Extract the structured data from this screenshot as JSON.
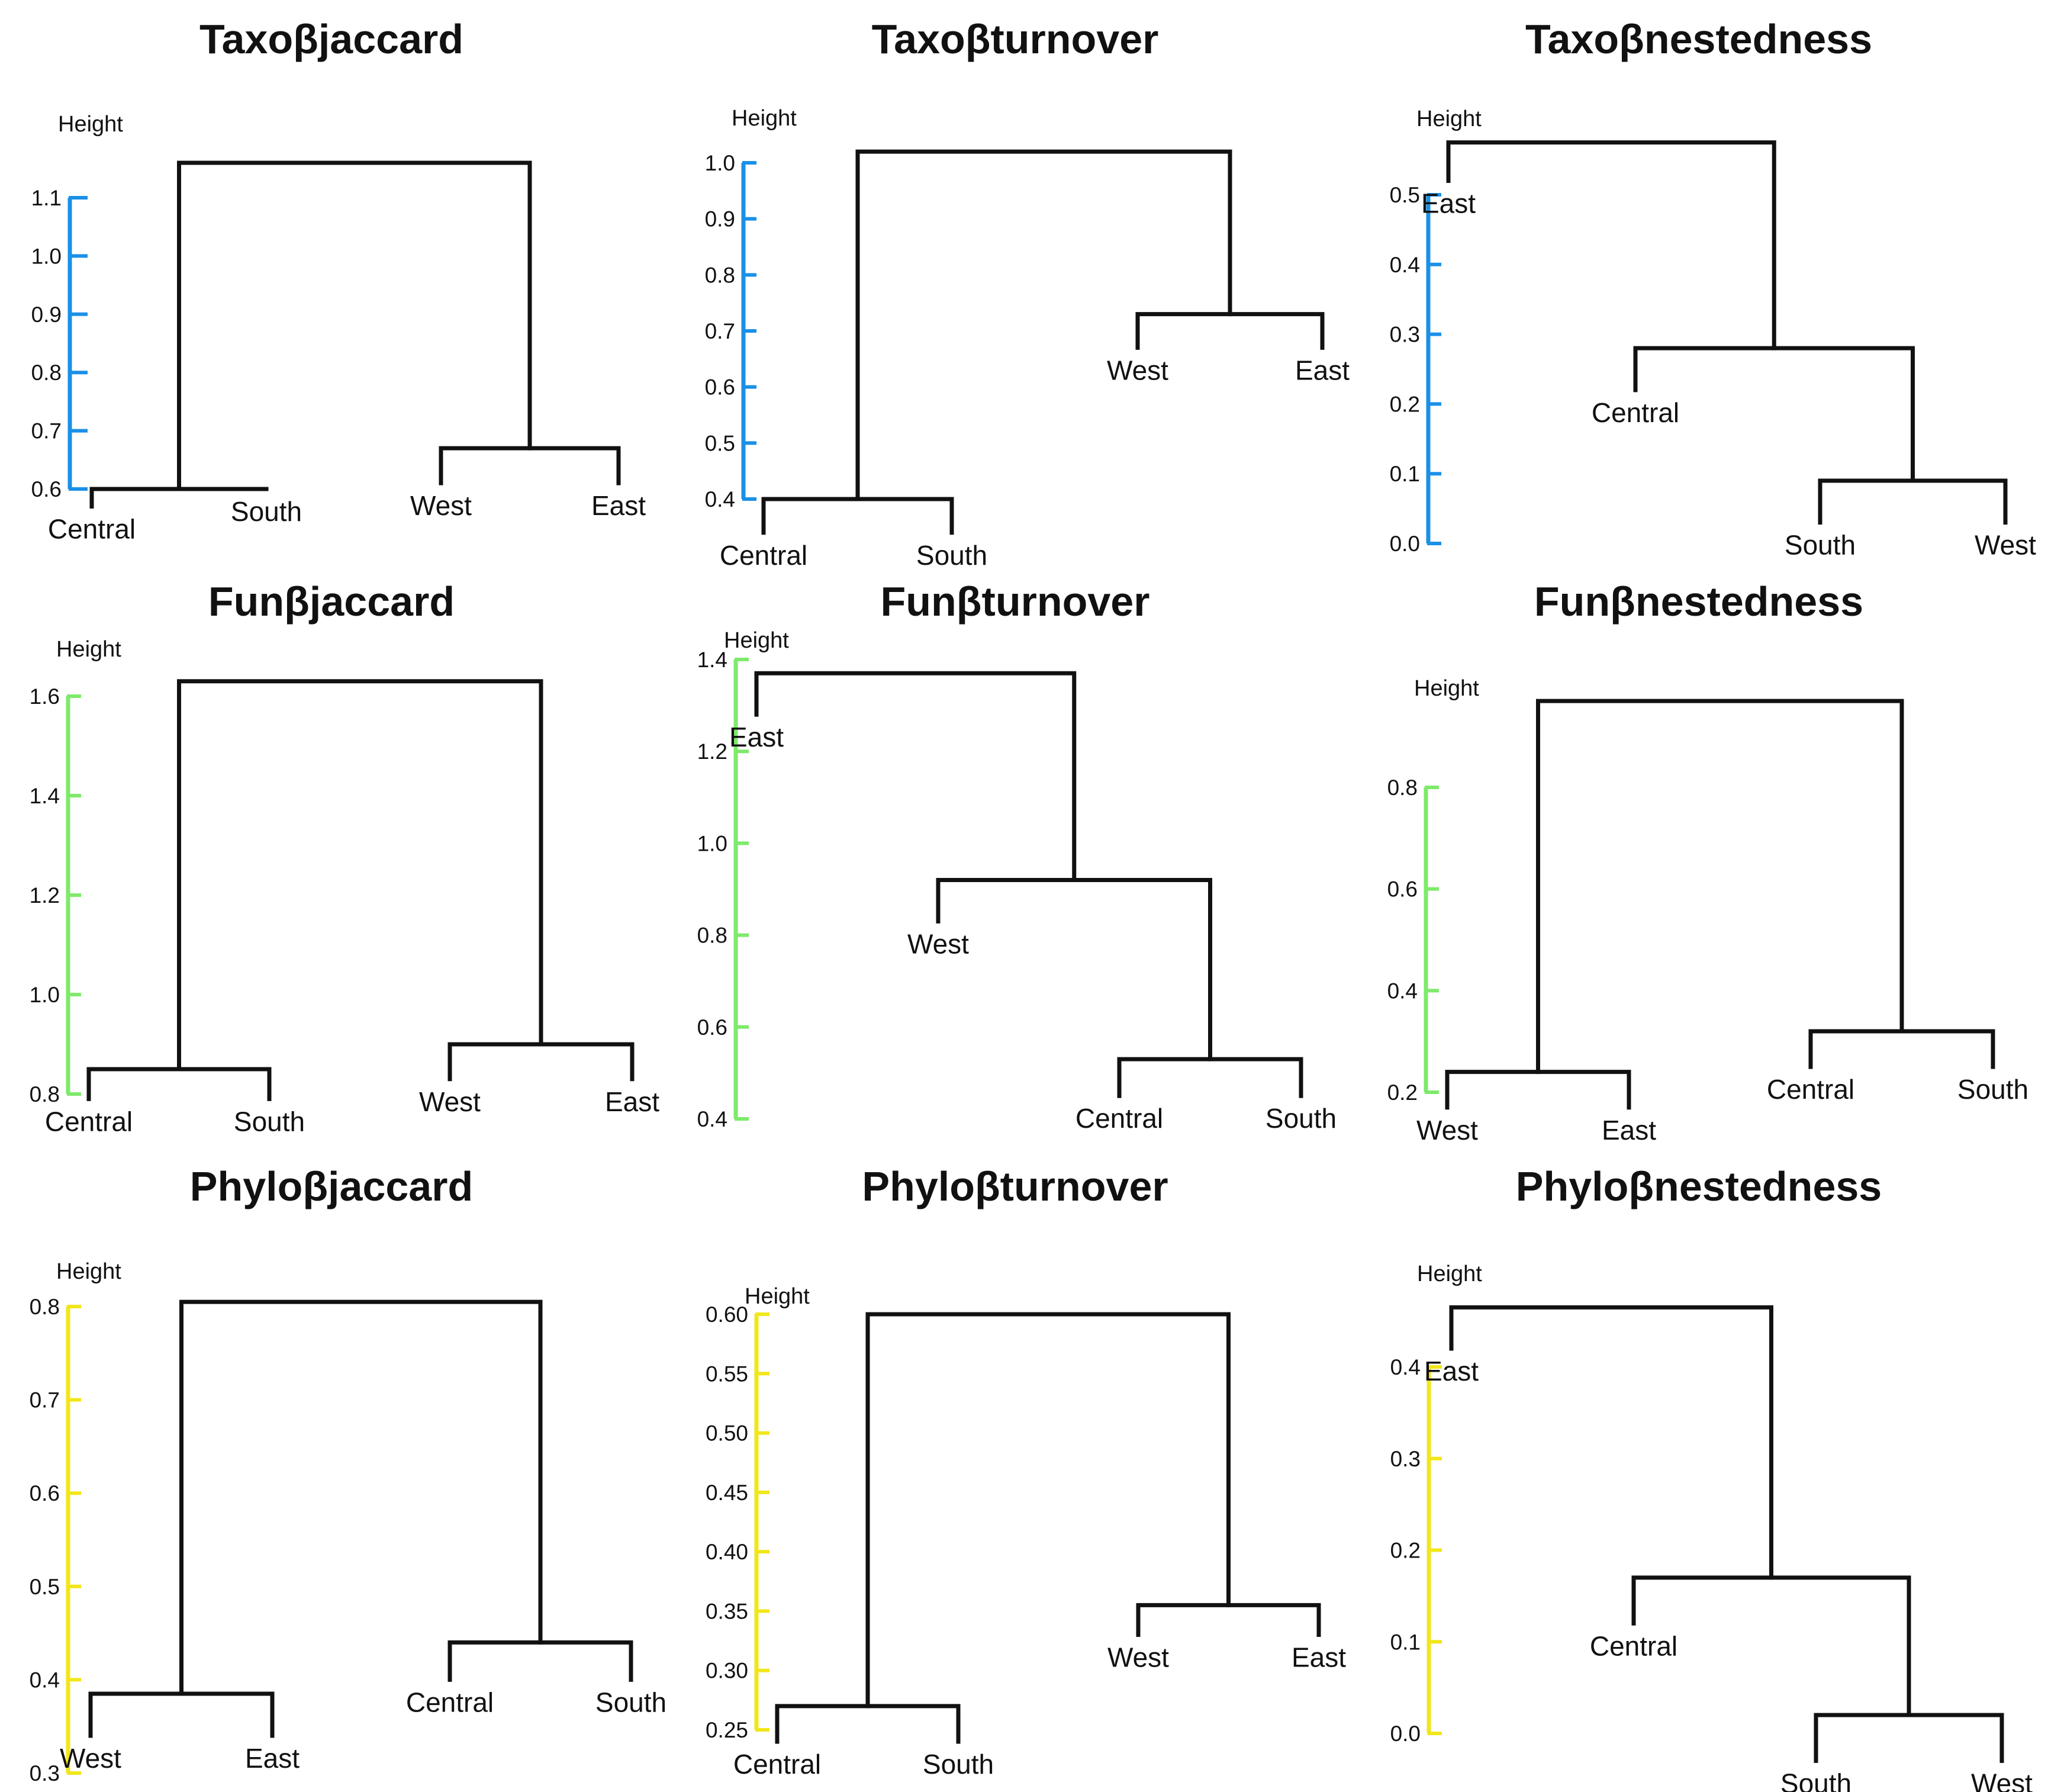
{
  "axis_label": "Height",
  "axis_colors": {
    "taxo": "#1a90e8",
    "fun": "#7dea6a",
    "phylo": "#f2e61a"
  },
  "chart_data": [
    {
      "type": "dendrogram",
      "title": "Taxoβjaccard",
      "axis_color": "#1a90e8",
      "ylabel": "Height",
      "ylim": [
        0.6,
        1.1
      ],
      "ticks": [
        0.6,
        0.7,
        0.8,
        0.9,
        1.0,
        1.1
      ],
      "tick_labels": [
        "0.6",
        "0.7",
        "0.8",
        "0.9",
        "1.0",
        "1.1"
      ],
      "leaves": [
        {
          "label": "Central",
          "leaf_height": 0.57
        },
        {
          "label": "South",
          "leaf_height": 0.6
        },
        {
          "label": "West",
          "leaf_height": 0.61
        },
        {
          "label": "East",
          "leaf_height": 0.61
        }
      ],
      "merges": [
        {
          "left": 0,
          "right": 1,
          "height": 0.6
        },
        {
          "left": 2,
          "right": 3,
          "height": 0.67
        },
        {
          "left": 4,
          "right": 5,
          "height": 1.16
        }
      ]
    },
    {
      "type": "dendrogram",
      "title": "Taxoβturnover",
      "axis_color": "#1a90e8",
      "ylabel": "Height",
      "ylim": [
        0.4,
        1.0
      ],
      "ticks": [
        0.4,
        0.5,
        0.6,
        0.7,
        0.8,
        0.9,
        1.0
      ],
      "tick_labels": [
        "0.4",
        "0.5",
        "0.6",
        "0.7",
        "0.8",
        "0.9",
        "1.0"
      ],
      "leaves": [
        {
          "label": "Central",
          "leaf_height": 0.34
        },
        {
          "label": "South",
          "leaf_height": 0.34
        },
        {
          "label": "West",
          "leaf_height": 0.67
        },
        {
          "label": "East",
          "leaf_height": 0.67
        }
      ],
      "merges": [
        {
          "left": 0,
          "right": 1,
          "height": 0.4
        },
        {
          "left": 2,
          "right": 3,
          "height": 0.73
        },
        {
          "left": 4,
          "right": 5,
          "height": 1.02
        }
      ]
    },
    {
      "type": "dendrogram",
      "title": "Taxoβnestedness",
      "axis_color": "#1a90e8",
      "ylabel": "Height",
      "ylim": [
        0.0,
        0.5
      ],
      "ticks": [
        0.0,
        0.1,
        0.2,
        0.3,
        0.4,
        0.5
      ],
      "tick_labels": [
        "0.0",
        "0.1",
        "0.2",
        "0.3",
        "0.4",
        "0.5"
      ],
      "leaves": [
        {
          "label": "East",
          "leaf_height": 0.52
        },
        {
          "label": "Central",
          "leaf_height": 0.22
        },
        {
          "label": "South",
          "leaf_height": 0.03
        },
        {
          "label": "West",
          "leaf_height": 0.03
        }
      ],
      "merges": [
        {
          "left": 2,
          "right": 3,
          "height": 0.09
        },
        {
          "left": 1,
          "right": 4,
          "height": 0.28
        },
        {
          "left": 0,
          "right": 5,
          "height": 0.575
        }
      ]
    },
    {
      "type": "dendrogram",
      "title": "Funβjaccard",
      "axis_color": "#7dea6a",
      "ylabel": "Height",
      "ylim": [
        0.8,
        1.6
      ],
      "ticks": [
        0.8,
        1.0,
        1.2,
        1.4,
        1.6
      ],
      "tick_labels": [
        "0.8",
        "1.0",
        "1.2",
        "1.4",
        "1.6"
      ],
      "leaves": [
        {
          "label": "Central",
          "leaf_height": 0.79
        },
        {
          "label": "South",
          "leaf_height": 0.79
        },
        {
          "label": "West",
          "leaf_height": 0.83
        },
        {
          "label": "East",
          "leaf_height": 0.83
        }
      ],
      "merges": [
        {
          "left": 0,
          "right": 1,
          "height": 0.85
        },
        {
          "left": 2,
          "right": 3,
          "height": 0.9
        },
        {
          "left": 4,
          "right": 5,
          "height": 1.63
        }
      ]
    },
    {
      "type": "dendrogram",
      "title": "Funβturnover",
      "axis_color": "#7dea6a",
      "ylabel": "Height",
      "ylim": [
        0.4,
        1.4
      ],
      "ticks": [
        0.4,
        0.6,
        0.8,
        1.0,
        1.2,
        1.4
      ],
      "tick_labels": [
        "0.4",
        "0.6",
        "0.8",
        "1.0",
        "1.2",
        "1.4"
      ],
      "leaves": [
        {
          "label": "East",
          "leaf_height": 1.28
        },
        {
          "label": "West",
          "leaf_height": 0.83
        },
        {
          "label": "Central",
          "leaf_height": 0.45
        },
        {
          "label": "South",
          "leaf_height": 0.45
        }
      ],
      "merges": [
        {
          "left": 2,
          "right": 3,
          "height": 0.53
        },
        {
          "left": 1,
          "right": 4,
          "height": 0.92
        },
        {
          "left": 0,
          "right": 5,
          "height": 1.37
        }
      ]
    },
    {
      "type": "dendrogram",
      "title": "Funβnestedness",
      "axis_color": "#7dea6a",
      "ylabel": "Height",
      "ylim": [
        0.2,
        0.8
      ],
      "ticks": [
        0.2,
        0.4,
        0.6,
        0.8
      ],
      "tick_labels": [
        "0.2",
        "0.4",
        "0.6",
        "0.8"
      ],
      "leaves": [
        {
          "label": "West",
          "leaf_height": 0.17
        },
        {
          "label": "East",
          "leaf_height": 0.17
        },
        {
          "label": "Central",
          "leaf_height": 0.25
        },
        {
          "label": "South",
          "leaf_height": 0.25
        }
      ],
      "merges": [
        {
          "left": 0,
          "right": 1,
          "height": 0.24
        },
        {
          "left": 2,
          "right": 3,
          "height": 0.32
        },
        {
          "left": 4,
          "right": 5,
          "height": 0.97
        }
      ]
    },
    {
      "type": "dendrogram",
      "title": "Phyloβjaccard",
      "axis_color": "#f2e61a",
      "ylabel": "Height",
      "ylim": [
        0.3,
        0.8
      ],
      "ticks": [
        0.3,
        0.4,
        0.5,
        0.6,
        0.7,
        0.8
      ],
      "tick_labels": [
        "0.3",
        "0.4",
        "0.5",
        "0.6",
        "0.7",
        "0.8"
      ],
      "leaves": [
        {
          "label": "West",
          "leaf_height": 0.34
        },
        {
          "label": "East",
          "leaf_height": 0.34
        },
        {
          "label": "Central",
          "leaf_height": 0.4
        },
        {
          "label": "South",
          "leaf_height": 0.4
        }
      ],
      "merges": [
        {
          "left": 0,
          "right": 1,
          "height": 0.385
        },
        {
          "left": 2,
          "right": 3,
          "height": 0.44
        },
        {
          "left": 4,
          "right": 5,
          "height": 0.805
        }
      ]
    },
    {
      "type": "dendrogram",
      "title": "Phyloβturnover",
      "axis_color": "#f2e61a",
      "ylabel": "Height",
      "ylim": [
        0.25,
        0.6
      ],
      "ticks": [
        0.25,
        0.3,
        0.35,
        0.4,
        0.45,
        0.5,
        0.55,
        0.6
      ],
      "tick_labels": [
        "0.25",
        "0.30",
        "0.35",
        "0.40",
        "0.45",
        "0.50",
        "0.55",
        "0.60"
      ],
      "leaves": [
        {
          "label": "Central",
          "leaf_height": 0.24
        },
        {
          "label": "South",
          "leaf_height": 0.24
        },
        {
          "label": "West",
          "leaf_height": 0.33
        },
        {
          "label": "East",
          "leaf_height": 0.33
        }
      ],
      "merges": [
        {
          "left": 0,
          "right": 1,
          "height": 0.27
        },
        {
          "left": 2,
          "right": 3,
          "height": 0.355
        },
        {
          "left": 4,
          "right": 5,
          "height": 0.6
        }
      ]
    },
    {
      "type": "dendrogram",
      "title": "Phyloβnestedness",
      "axis_color": "#f2e61a",
      "ylabel": "Height",
      "ylim": [
        0.0,
        0.4
      ],
      "ticks": [
        0.0,
        0.1,
        0.2,
        0.3,
        0.4
      ],
      "tick_labels": [
        "0.0",
        "0.1",
        "0.2",
        "0.3",
        "0.4"
      ],
      "leaves": [
        {
          "label": "East",
          "leaf_height": 0.42
        },
        {
          "label": "Central",
          "leaf_height": 0.12
        },
        {
          "label": "South",
          "leaf_height": -0.03
        },
        {
          "label": "West",
          "leaf_height": -0.03
        }
      ],
      "merges": [
        {
          "left": 2,
          "right": 3,
          "height": 0.02
        },
        {
          "left": 1,
          "right": 4,
          "height": 0.17
        },
        {
          "left": 0,
          "right": 5,
          "height": 0.465
        }
      ]
    }
  ]
}
